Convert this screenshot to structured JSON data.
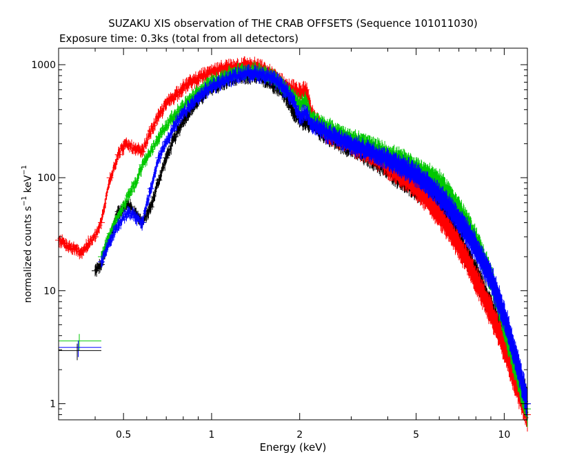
{
  "chart_data": {
    "type": "scatter",
    "title": "SUZAKU XIS observation of THE CRAB OFFSETS (Sequence 101011030)",
    "subtitle": "Exposure time: 0.3ks (total from all detectors)",
    "xlabel": "Energy (keV)",
    "ylabel_main": "normalized counts s",
    "ylabel_sup1": "−1",
    "ylabel_mid": " keV",
    "ylabel_sup2": "−1",
    "xscale": "log",
    "yscale": "log",
    "xlim": [
      0.3,
      12
    ],
    "ylim": [
      0.72,
      1400
    ],
    "x_ticks": [
      {
        "value": 0.5,
        "label": "0.5"
      },
      {
        "value": 1,
        "label": "1"
      },
      {
        "value": 2,
        "label": "2"
      },
      {
        "value": 5,
        "label": "5"
      },
      {
        "value": 10,
        "label": "10"
      }
    ],
    "y_ticks": [
      {
        "value": 1,
        "label": "1"
      },
      {
        "value": 10,
        "label": "10"
      },
      {
        "value": 100,
        "label": "100"
      },
      {
        "value": 1000,
        "label": "1000"
      }
    ],
    "series": [
      {
        "color": "#000000",
        "points": [
          [
            0.4,
            15
          ],
          [
            0.42,
            17
          ],
          [
            0.45,
            30
          ],
          [
            0.48,
            50
          ],
          [
            0.52,
            58
          ],
          [
            0.55,
            48
          ],
          [
            0.58,
            40
          ],
          [
            0.62,
            55
          ],
          [
            0.66,
            95
          ],
          [
            0.7,
            150
          ],
          [
            0.75,
            230
          ],
          [
            0.8,
            320
          ],
          [
            0.85,
            400
          ],
          [
            0.9,
            480
          ],
          [
            0.95,
            560
          ],
          [
            1.0,
            620
          ],
          [
            1.1,
            700
          ],
          [
            1.2,
            760
          ],
          [
            1.3,
            790
          ],
          [
            1.4,
            790
          ],
          [
            1.5,
            760
          ],
          [
            1.6,
            700
          ],
          [
            1.7,
            620
          ],
          [
            1.8,
            520
          ],
          [
            1.9,
            380
          ],
          [
            2.0,
            330
          ],
          [
            2.2,
            300
          ],
          [
            2.4,
            250
          ],
          [
            2.7,
            210
          ],
          [
            3.0,
            185
          ],
          [
            3.5,
            150
          ],
          [
            4.0,
            120
          ],
          [
            4.5,
            95
          ],
          [
            5.0,
            80
          ],
          [
            5.5,
            68
          ],
          [
            6.0,
            55
          ],
          [
            6.5,
            40
          ],
          [
            7.0,
            28
          ],
          [
            7.5,
            20
          ],
          [
            8.0,
            14
          ],
          [
            9.0,
            7
          ],
          [
            10.0,
            3.8
          ],
          [
            11.0,
            2.0
          ],
          [
            12.0,
            1.0
          ]
        ]
      },
      {
        "color": "#ff0000",
        "points": [
          [
            0.3,
            28
          ],
          [
            0.32,
            25
          ],
          [
            0.34,
            23
          ],
          [
            0.36,
            22
          ],
          [
            0.38,
            26
          ],
          [
            0.4,
            30
          ],
          [
            0.42,
            40
          ],
          [
            0.45,
            100
          ],
          [
            0.48,
            160
          ],
          [
            0.5,
            190
          ],
          [
            0.52,
            195
          ],
          [
            0.55,
            175
          ],
          [
            0.58,
            170
          ],
          [
            0.62,
            260
          ],
          [
            0.66,
            350
          ],
          [
            0.7,
            450
          ],
          [
            0.75,
            540
          ],
          [
            0.8,
            630
          ],
          [
            0.85,
            700
          ],
          [
            0.9,
            760
          ],
          [
            0.95,
            810
          ],
          [
            1.0,
            850
          ],
          [
            1.1,
            920
          ],
          [
            1.2,
            960
          ],
          [
            1.3,
            990
          ],
          [
            1.4,
            960
          ],
          [
            1.5,
            900
          ],
          [
            1.6,
            820
          ],
          [
            1.7,
            720
          ],
          [
            1.8,
            640
          ],
          [
            1.9,
            600
          ],
          [
            2.0,
            560
          ],
          [
            2.1,
            600
          ],
          [
            2.2,
            360
          ],
          [
            2.4,
            260
          ],
          [
            2.7,
            225
          ],
          [
            3.0,
            195
          ],
          [
            3.5,
            160
          ],
          [
            4.0,
            125
          ],
          [
            4.5,
            100
          ],
          [
            5.0,
            80
          ],
          [
            5.5,
            62
          ],
          [
            6.0,
            46
          ],
          [
            6.5,
            34
          ],
          [
            7.0,
            25
          ],
          [
            7.5,
            18
          ],
          [
            8.0,
            12.5
          ],
          [
            9.0,
            6.5
          ],
          [
            10.0,
            3.2
          ],
          [
            11.0,
            1.5
          ],
          [
            12.0,
            0.8
          ]
        ]
      },
      {
        "color": "#00c800",
        "points": [
          [
            0.42,
            20
          ],
          [
            0.45,
            32
          ],
          [
            0.48,
            45
          ],
          [
            0.52,
            70
          ],
          [
            0.55,
            90
          ],
          [
            0.58,
            130
          ],
          [
            0.62,
            170
          ],
          [
            0.66,
            230
          ],
          [
            0.7,
            290
          ],
          [
            0.75,
            360
          ],
          [
            0.8,
            430
          ],
          [
            0.85,
            500
          ],
          [
            0.9,
            570
          ],
          [
            0.95,
            640
          ],
          [
            1.0,
            700
          ],
          [
            1.1,
            790
          ],
          [
            1.2,
            850
          ],
          [
            1.3,
            880
          ],
          [
            1.4,
            880
          ],
          [
            1.5,
            850
          ],
          [
            1.6,
            790
          ],
          [
            1.7,
            700
          ],
          [
            1.8,
            600
          ],
          [
            1.9,
            520
          ],
          [
            2.0,
            440
          ],
          [
            2.1,
            480
          ],
          [
            2.2,
            330
          ],
          [
            2.4,
            290
          ],
          [
            2.7,
            250
          ],
          [
            3.0,
            220
          ],
          [
            3.5,
            190
          ],
          [
            4.0,
            160
          ],
          [
            4.5,
            140
          ],
          [
            5.0,
            120
          ],
          [
            5.5,
            105
          ],
          [
            6.0,
            90
          ],
          [
            6.5,
            70
          ],
          [
            7.0,
            52
          ],
          [
            7.5,
            38
          ],
          [
            8.0,
            28
          ],
          [
            9.0,
            13
          ],
          [
            10.0,
            5.0
          ],
          [
            11.0,
            2.0
          ],
          [
            12.0,
            0.9
          ]
        ]
      },
      {
        "color": "#0000ff",
        "points": [
          [
            0.42,
            18
          ],
          [
            0.45,
            28
          ],
          [
            0.48,
            38
          ],
          [
            0.52,
            50
          ],
          [
            0.55,
            45
          ],
          [
            0.58,
            40
          ],
          [
            0.62,
            80
          ],
          [
            0.66,
            150
          ],
          [
            0.7,
            210
          ],
          [
            0.75,
            290
          ],
          [
            0.8,
            370
          ],
          [
            0.85,
            440
          ],
          [
            0.9,
            510
          ],
          [
            0.95,
            580
          ],
          [
            1.0,
            640
          ],
          [
            1.1,
            720
          ],
          [
            1.2,
            790
          ],
          [
            1.3,
            830
          ],
          [
            1.4,
            840
          ],
          [
            1.5,
            810
          ],
          [
            1.6,
            760
          ],
          [
            1.7,
            680
          ],
          [
            1.8,
            590
          ],
          [
            1.9,
            470
          ],
          [
            2.0,
            340
          ],
          [
            2.1,
            380
          ],
          [
            2.2,
            300
          ],
          [
            2.4,
            260
          ],
          [
            2.7,
            220
          ],
          [
            3.0,
            195
          ],
          [
            3.5,
            170
          ],
          [
            4.0,
            145
          ],
          [
            4.5,
            125
          ],
          [
            5.0,
            105
          ],
          [
            5.5,
            88
          ],
          [
            6.0,
            70
          ],
          [
            6.5,
            55
          ],
          [
            7.0,
            42
          ],
          [
            7.5,
            32
          ],
          [
            8.0,
            24
          ],
          [
            9.0,
            13
          ],
          [
            10.0,
            6.0
          ],
          [
            11.0,
            2.5
          ],
          [
            12.0,
            1.0
          ]
        ]
      }
    ],
    "legend_bars": [
      {
        "color": "#00c800",
        "y": 3.6
      },
      {
        "color": "#0000ff",
        "y": 3.15
      },
      {
        "color": "#000000",
        "y": 2.95
      }
    ]
  }
}
